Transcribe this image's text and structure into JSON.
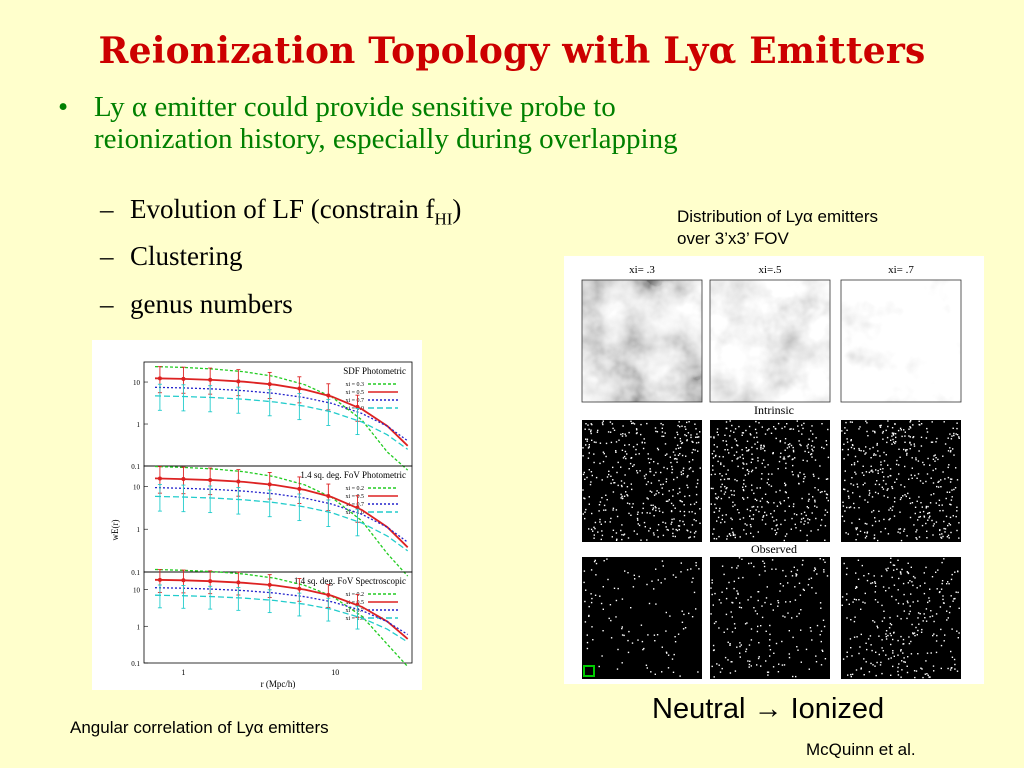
{
  "title_text": "Reionization Topology with Ly",
  "title_greek": "α",
  "title_tail": " Emitters",
  "bullet_main_1": "Ly ",
  "bullet_main_greek": "α",
  "bullet_main_2": " emitter could provide sensitive probe to",
  "bullet_main_line2": "reionization history, especially during overlapping",
  "sub1_text": "Evolution of LF (constrain f",
  "sub1_subscript": "HI",
  "sub1_close": ")",
  "sub2_text": "Clustering",
  "sub3_text": "genus numbers",
  "right_caption_line1": "Distribution of Lyα emitters",
  "right_caption_line2": "over 3’x3’ FOV",
  "left_caption": "Angular correlation of Lyα emitters",
  "neutral_label": "Neutral",
  "arrow_glyph": "→",
  "ionized_label": "Ionized",
  "credit": "McQuinn et al.",
  "maps": {
    "col_labels": [
      "xi= .3",
      "xi=.5",
      "xi= .7"
    ],
    "row_labels": [
      "Intrinsic",
      "Observed"
    ]
  },
  "chart_data": [
    {
      "type": "line",
      "title": "SDF Photometric",
      "ylabel": "wE(r)",
      "yscale": "log",
      "ylim": [
        0.1,
        30
      ],
      "yticks": [
        "10",
        "1",
        "0.1"
      ],
      "legend": [
        "xi = 0.3",
        "xi = 0.5",
        "xi = 0.7",
        "xi = 1.0"
      ]
    },
    {
      "type": "line",
      "title": "1.4 sq. deg. FoV Photometric",
      "yscale": "log",
      "ylim": [
        0.1,
        30
      ],
      "yticks": [
        "10",
        "1",
        "0.1"
      ],
      "legend": [
        "xi = 0.2",
        "xi = 0.5",
        "xi = 0.7",
        "xi = 1.0"
      ]
    },
    {
      "type": "line",
      "title": "1.4 sq. deg. FoV Spectroscopic",
      "xlabel": "r (Mpc/h)",
      "xscale": "log",
      "xticks": [
        "1",
        "10"
      ],
      "yscale": "log",
      "ylim": [
        0.1,
        30
      ],
      "yticks": [
        "10",
        "1",
        "0.1"
      ],
      "legend": [
        "xi = 0.2",
        "xi = 0.5",
        "xi = 0.7",
        "xi = 1.0"
      ]
    }
  ],
  "colors": {
    "background": "#ffffcc",
    "title": "#cc0000",
    "bullet": "#008000",
    "series_green": "#22cc22",
    "series_red": "#dd2222",
    "series_blue": "#2222cc",
    "series_cyan": "#22cccc"
  }
}
